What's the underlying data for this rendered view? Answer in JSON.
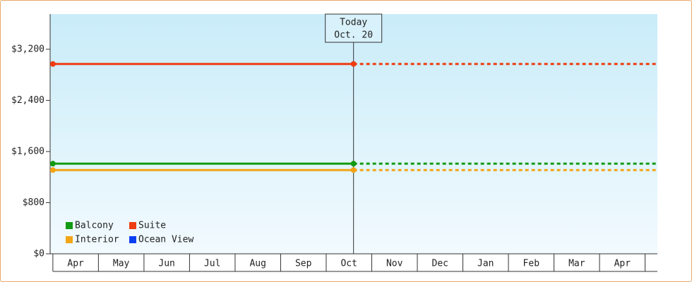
{
  "chart_data": {
    "type": "line",
    "categories": [
      "Apr",
      "May",
      "Jun",
      "Jul",
      "Aug",
      "Sep",
      "Oct",
      "Nov",
      "Dec",
      "Jan",
      "Feb",
      "Mar",
      "Apr"
    ],
    "x": [
      0,
      6.6
    ],
    "xlim": [
      -0.06,
      13.27
    ],
    "series": [
      {
        "name": "Balcony",
        "color": "#129a12",
        "values": [
          1410,
          1410
        ]
      },
      {
        "name": "Interior",
        "color": "#f2a516",
        "values": [
          1310,
          1310
        ]
      },
      {
        "name": "Suite",
        "color": "#ee3d12",
        "values": [
          2970,
          2970
        ]
      },
      {
        "name": "Ocean View",
        "color": "#0b3ff2",
        "values": [
          null,
          null
        ]
      }
    ],
    "ylim": [
      0,
      3750
    ],
    "yticks": [
      {
        "value": 0,
        "label": "$0"
      },
      {
        "value": 800,
        "label": "$800"
      },
      {
        "value": 1600,
        "label": "$1,600"
      },
      {
        "value": 2400,
        "label": "$2,400"
      },
      {
        "value": 3200,
        "label": "$3,200"
      }
    ],
    "annotation": {
      "x": 6.6,
      "lines": [
        "Today",
        "Oct. 20"
      ]
    },
    "projection": "dashed",
    "legend": "lower left"
  }
}
